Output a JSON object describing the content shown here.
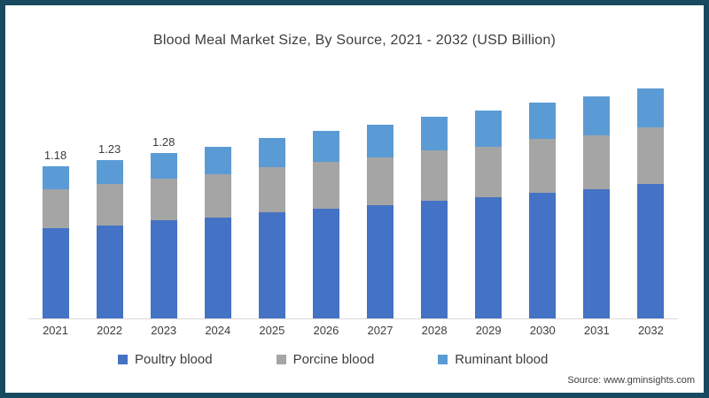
{
  "title": "Blood Meal Market Size, By Source, 2021 - 2032 (USD Billion)",
  "source_text": "Source: www.gminsights.com",
  "colors": {
    "frame_border": "#174a5e",
    "background": "#ffffff",
    "text": "#3d3d3d",
    "baseline": "#d9d9d9",
    "poultry_blue": "#4472c4",
    "porcine_gray": "#a5a5a5",
    "ruminant_light_blue": "#5b9bd5"
  },
  "chart_data": {
    "type": "bar",
    "stacked": true,
    "title": "Blood Meal Market Size, By Source, 2021 - 2032 (USD Billion)",
    "unit": "USD Billion",
    "categories": [
      "2021",
      "2022",
      "2023",
      "2024",
      "2025",
      "2026",
      "2027",
      "2028",
      "2029",
      "2030",
      "2031",
      "2032"
    ],
    "series": [
      {
        "name": "Poultry blood",
        "color": "#4472c4",
        "values": [
          0.7,
          0.72,
          0.76,
          0.78,
          0.82,
          0.85,
          0.88,
          0.91,
          0.94,
          0.97,
          1.0,
          1.04
        ]
      },
      {
        "name": "Porcine blood",
        "color": "#a5a5a5",
        "values": [
          0.3,
          0.32,
          0.32,
          0.34,
          0.35,
          0.36,
          0.37,
          0.39,
          0.39,
          0.42,
          0.42,
          0.44
        ]
      },
      {
        "name": "Ruminant blood",
        "color": "#5b9bd5",
        "values": [
          0.18,
          0.19,
          0.2,
          0.21,
          0.23,
          0.24,
          0.25,
          0.26,
          0.28,
          0.28,
          0.3,
          0.3
        ]
      }
    ],
    "totals": [
      1.18,
      1.23,
      1.28,
      1.33,
      1.4,
      1.45,
      1.5,
      1.56,
      1.61,
      1.67,
      1.72,
      1.78
    ],
    "value_labels": {
      "2021": "1.18",
      "2022": "1.23",
      "2023": "1.28"
    },
    "xlabel": "",
    "ylabel": "",
    "ylim": [
      0,
      1.86
    ],
    "grid": false,
    "y_axis_visible": false,
    "legend_position": "bottom"
  }
}
